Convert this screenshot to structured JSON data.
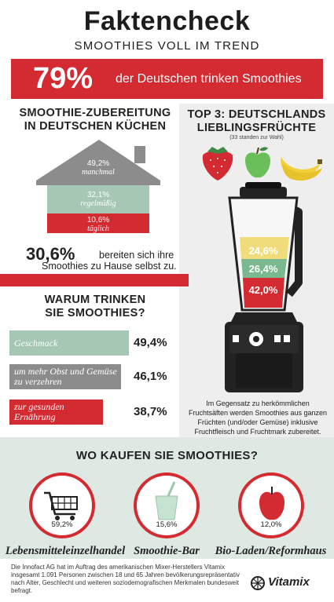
{
  "header": {
    "title": "Faktencheck",
    "subtitle": "SMOOTHIES VOLL IM TREND"
  },
  "banner": {
    "percent": "79%",
    "text": "der Deutschen trinken Smoothies",
    "color": "#d42a31"
  },
  "preparation": {
    "heading_line1": "SMOOTHIE-ZUBEREITUNG",
    "heading_line2": "IN DEUTSCHEN KÜCHEN",
    "house": [
      {
        "value": "49,2%",
        "label": "manchmal",
        "color": "#8c8c8c"
      },
      {
        "value": "32,1%",
        "label": "regelmäßig",
        "color": "#a5c7b3"
      },
      {
        "value": "10,6%",
        "label": "täglich",
        "color": "#d42a31"
      }
    ],
    "home_percent": "30,6%",
    "home_text_line1": "bereiten sich ihre",
    "home_text_line2": "Smoothies zu Hause selbst zu."
  },
  "reasons": {
    "heading_line1": "WARUM TRINKEN",
    "heading_line2": "SIE SMOOTHIES?",
    "items": [
      {
        "label": "Geschmack",
        "value": "49,4%",
        "color": "#a5c7b3",
        "fraction": 0.494
      },
      {
        "label": "um mehr Obst und Gemüse zu verzehren",
        "value": "46,1%",
        "color": "#8c8c8c",
        "fraction": 0.461
      },
      {
        "label": "zur gesunden Ernährung",
        "value": "38,7%",
        "color": "#d42a31",
        "fraction": 0.387
      }
    ]
  },
  "fruits": {
    "heading_line1": "TOP 3: DEUTSCHLANDS",
    "heading_line2": "LIEBLINGSFRÜCHTE",
    "note": "(33 standen zur Wahl)",
    "icons": [
      "strawberry-icon",
      "apple-icon",
      "banana-icon"
    ],
    "blender_values": [
      {
        "value": "24,6%",
        "color": "#f0dc7a"
      },
      {
        "value": "26,4%",
        "color": "#7ab88f"
      },
      {
        "value": "42,0%",
        "color": "#d42a31"
      }
    ],
    "blender_text": "Im Gegensatz zu herkömmlichen Fruchtsäften werden Smoothies aus ganzen Früchten (und/oder Gemüse) inklusive Fruchtfleisch und Fruchtmark zubereitet."
  },
  "shops": {
    "heading": "WO KAUFEN SIE SMOOTHIES?",
    "items": [
      {
        "value": "59,2%",
        "label": "Lebensmitteleinzelhandel",
        "icon": "shopping-cart-icon"
      },
      {
        "value": "15,6%",
        "label": "Smoothie-Bar",
        "icon": "smoothie-cup-icon"
      },
      {
        "value": "12,0%",
        "label": "Bio-Laden/Reformhaus",
        "icon": "apple-icon"
      }
    ]
  },
  "footer": {
    "text": "Die Innofact AG hat im Auftrag des amerikanischen Mixer-Herstellers Vitamix insgesamt 1.091 Personen zwischen 18 und 65 Jahren bevölkerungsrepräsentativ nach Alter, Geschlecht und weiteren soziodemografischen Merkmalen bundesweit befragt.",
    "logo": "Vitamix"
  }
}
